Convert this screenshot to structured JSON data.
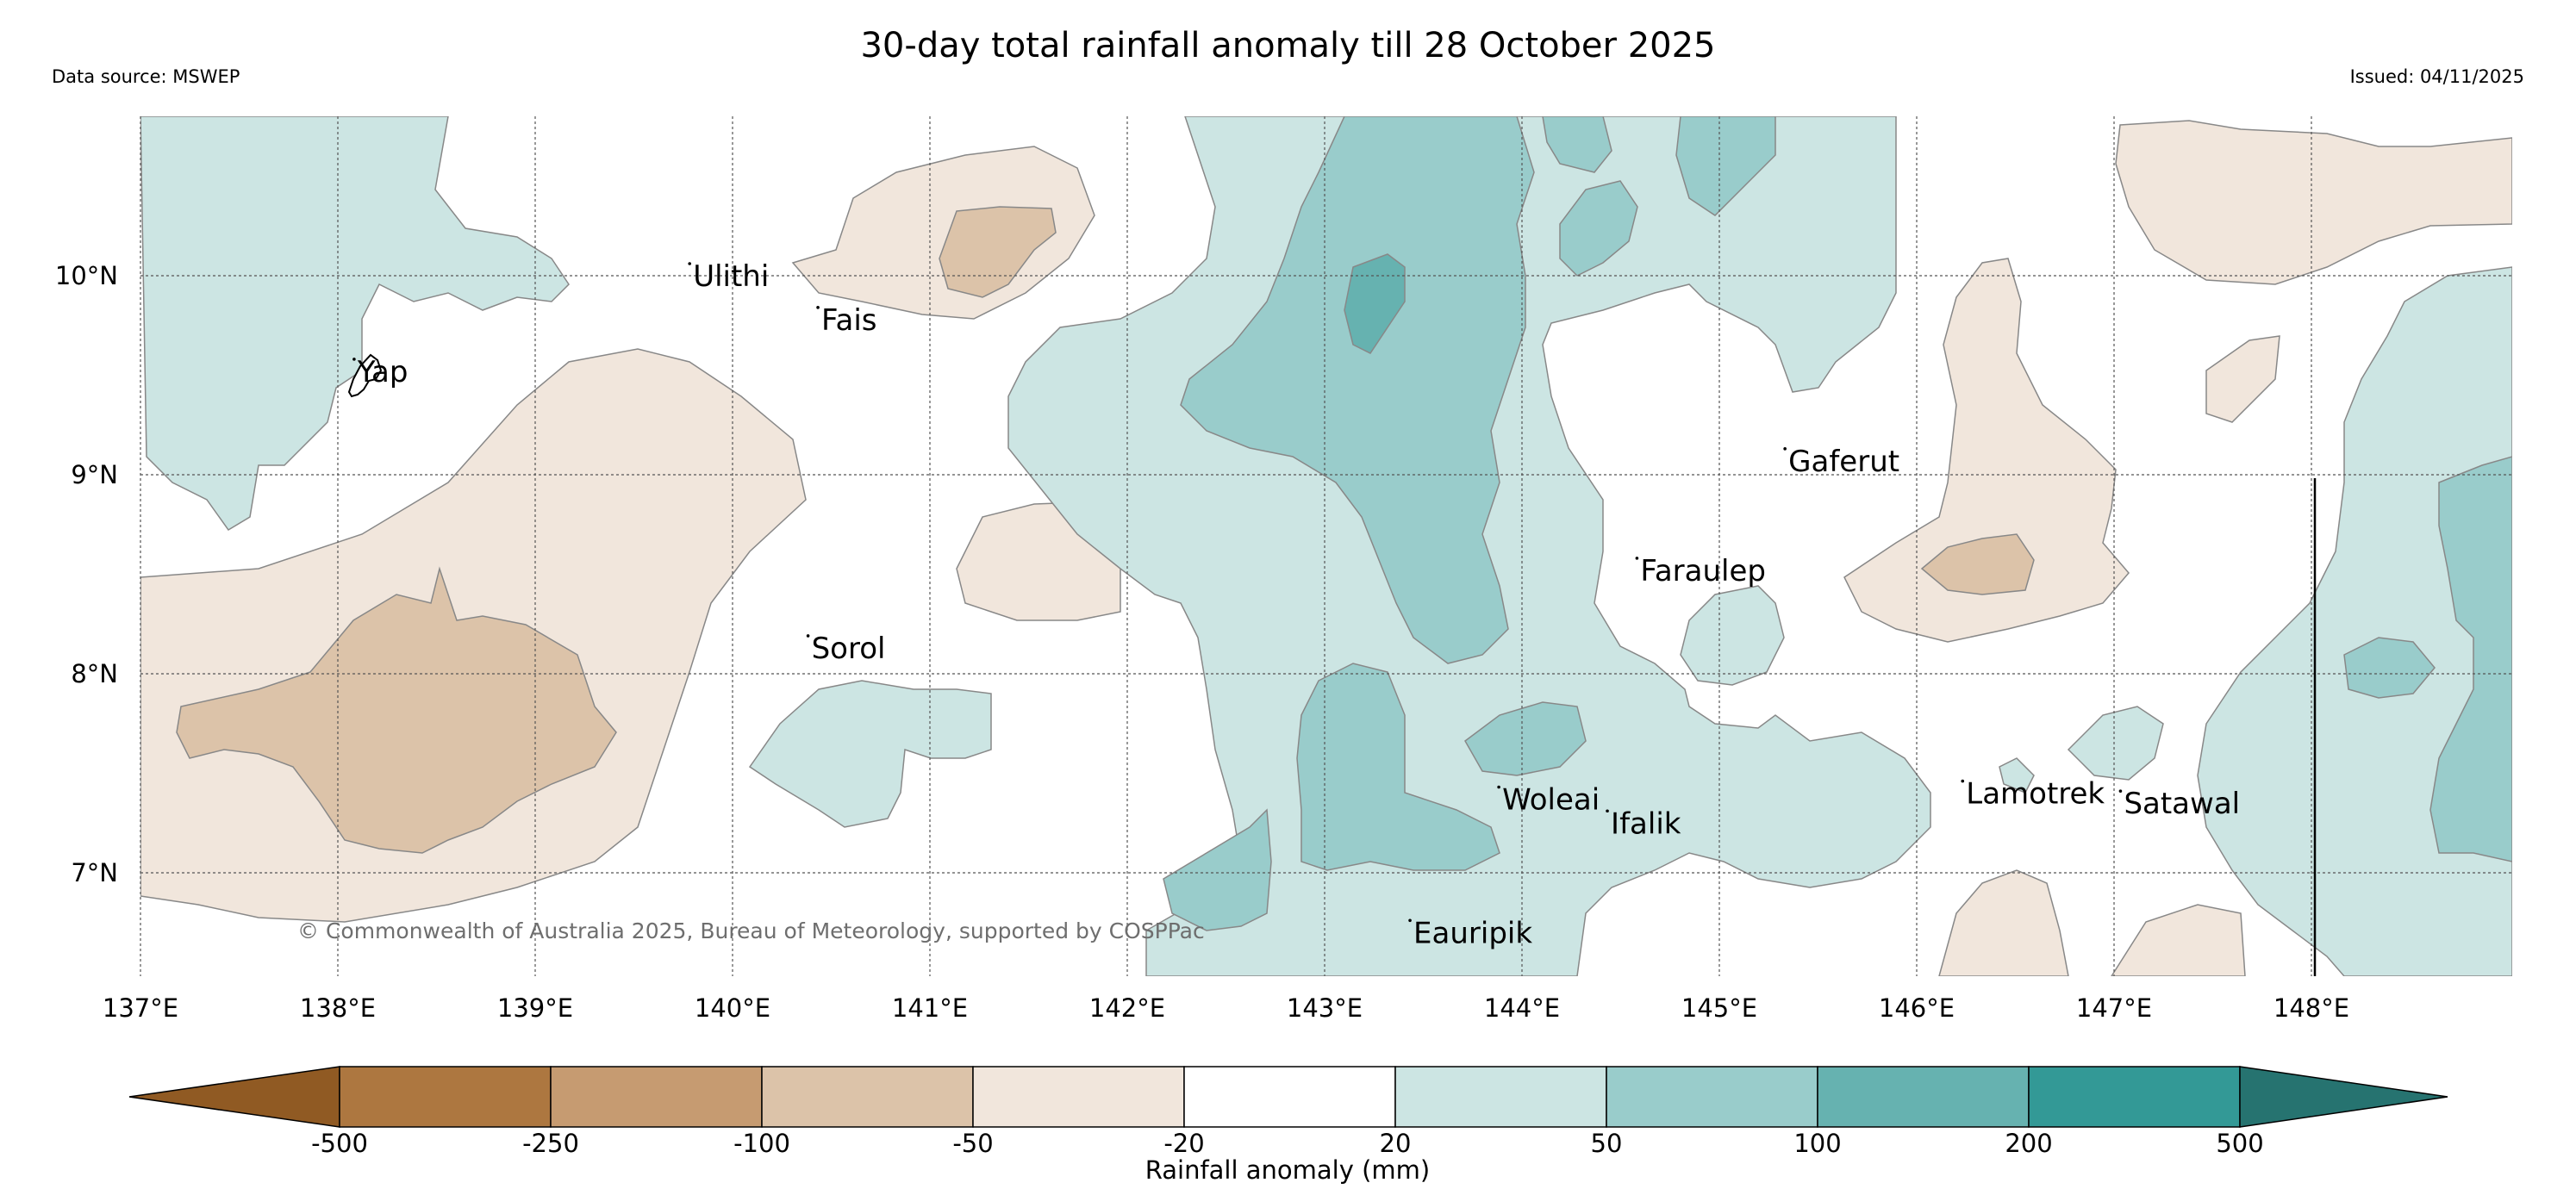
{
  "header": {
    "title": "30-day total rainfall anomaly till 28 October 2025",
    "data_source": "Data source: MSWEP",
    "issued": "Issued: 04/11/2025"
  },
  "map": {
    "lon_range": [
      137,
      149
    ],
    "lat_range": [
      6.5,
      10.8
    ],
    "lon_ticks": [
      "137°E",
      "138°E",
      "139°E",
      "140°E",
      "141°E",
      "142°E",
      "143°E",
      "144°E",
      "145°E",
      "146°E",
      "147°E",
      "148°E"
    ],
    "lat_ticks": [
      "10°N",
      "9°N",
      "8°N",
      "7°N"
    ],
    "copyright": "© Commonwealth of Australia 2025, Bureau of Meteorology, supported by COSPPac",
    "places": [
      {
        "name": "Ulithi",
        "lon": 139.8,
        "lat": 10.0
      },
      {
        "name": "Fais",
        "lon": 140.45,
        "lat": 9.78
      },
      {
        "name": "Yap",
        "lon": 138.1,
        "lat": 9.52
      },
      {
        "name": "Gaferut",
        "lon": 145.35,
        "lat": 9.07
      },
      {
        "name": "Faraulep",
        "lon": 144.6,
        "lat": 8.52
      },
      {
        "name": "Sorol",
        "lon": 140.4,
        "lat": 8.13
      },
      {
        "name": "Woleai",
        "lon": 143.9,
        "lat": 7.37
      },
      {
        "name": "Ifalik",
        "lon": 144.45,
        "lat": 7.25
      },
      {
        "name": "Lamotrek",
        "lon": 146.25,
        "lat": 7.4
      },
      {
        "name": "Satawal",
        "lon": 147.05,
        "lat": 7.35
      },
      {
        "name": "Eauripik",
        "lon": 143.45,
        "lat": 6.7
      }
    ]
  },
  "colorbar": {
    "label": "Rainfall anomaly (mm)",
    "ticks": [
      "-500",
      "-250",
      "-100",
      "-50",
      "-20",
      "20",
      "50",
      "100",
      "200",
      "500"
    ],
    "colors": [
      "#905a23",
      "#ad7740",
      "#c69b71",
      "#dcc3a9",
      "#f1e6dc",
      "#ffffff",
      "#cce5e3",
      "#99cccb",
      "#66b2b0",
      "#339996",
      "#267370"
    ]
  }
}
